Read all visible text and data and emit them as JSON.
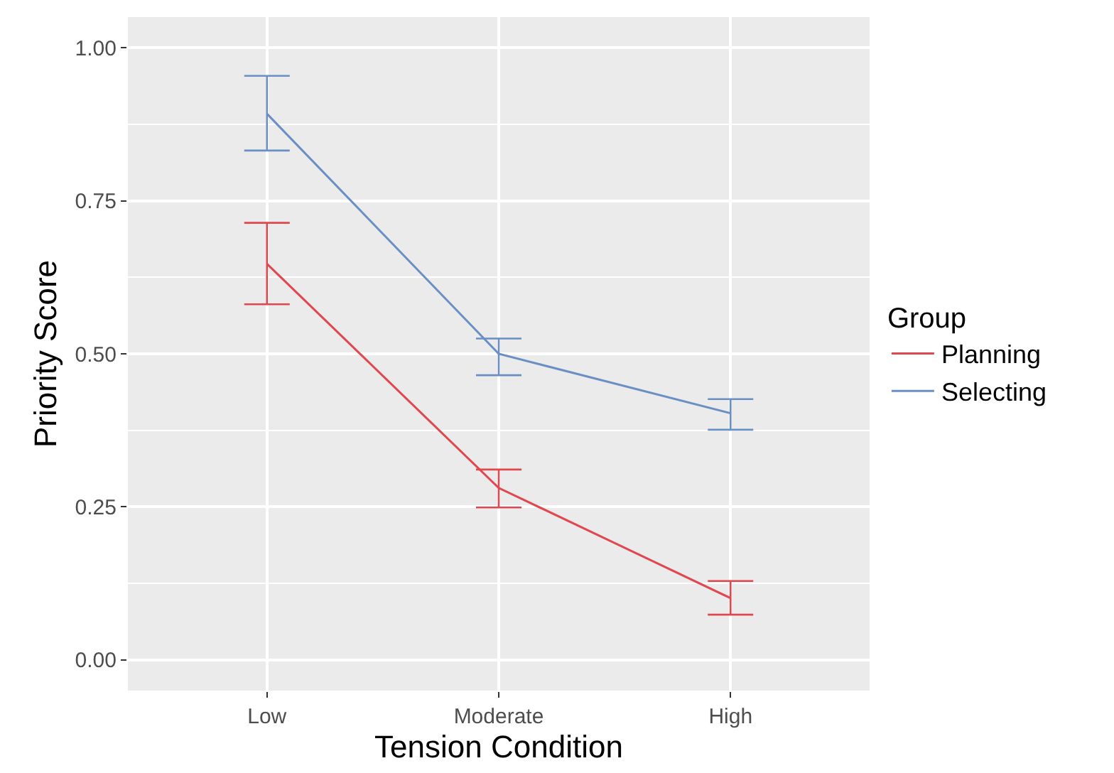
{
  "chart_data": {
    "type": "line",
    "xlabel": "Tension Condition",
    "ylabel": "Priority Score",
    "legend_title": "Group",
    "categories": [
      "Low",
      "Moderate",
      "High"
    ],
    "series": [
      {
        "name": "Planning",
        "color": "#e0474f",
        "values": [
          0.647,
          0.281,
          0.101
        ],
        "errors": [
          [
            0.581,
            0.714
          ],
          [
            0.249,
            0.311
          ],
          [
            0.074,
            0.129
          ]
        ]
      },
      {
        "name": "Selecting",
        "color": "#6a8fc4",
        "values": [
          0.892,
          0.5,
          0.403
        ],
        "errors": [
          [
            0.832,
            0.954
          ],
          [
            0.465,
            0.525
          ],
          [
            0.376,
            0.426
          ]
        ]
      }
    ],
    "ylim": [
      -0.05,
      1.05
    ],
    "yticks": [
      {
        "value": 0,
        "label": "0.00"
      },
      {
        "value": 0.25,
        "label": "0.25"
      },
      {
        "value": 0.5,
        "label": "0.50"
      },
      {
        "value": 0.75,
        "label": "0.75"
      },
      {
        "value": 1,
        "label": "1.00"
      }
    ],
    "grid": true,
    "legend": "right",
    "marker": "none",
    "line_style": "solid"
  }
}
